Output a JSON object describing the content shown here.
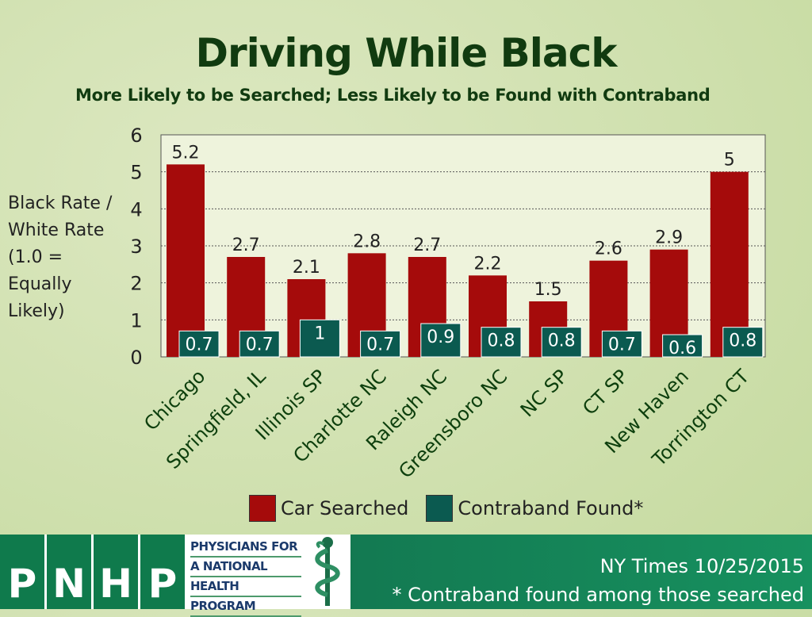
{
  "title": "Driving While Black",
  "subtitle": "More Likely to be Searched; Less Likely to be Found with Contraband",
  "y_axis_label_lines": [
    "Black Rate /",
    "White Rate",
    "(1.0 =",
    "Equally",
    "Likely)"
  ],
  "chart_data": {
    "type": "bar",
    "categories": [
      "Chicago",
      "Springfield, IL",
      "Illinois SP",
      "Charlotte NC",
      "Raleigh NC",
      "Greensboro NC",
      "NC SP",
      "CT SP",
      "New Haven",
      "Torrington CT"
    ],
    "series": [
      {
        "name": "Car Searched",
        "values": [
          5.2,
          2.7,
          2.1,
          2.8,
          2.7,
          2.2,
          1.5,
          2.6,
          2.9,
          5
        ],
        "labels": [
          "5.2",
          "2.7",
          "2.1",
          "2.8",
          "2.7",
          "2.2",
          "1.5",
          "2.6",
          "2.9",
          "5"
        ],
        "color": "#a50b0b"
      },
      {
        "name": "Contraband Found*",
        "values": [
          0.7,
          0.7,
          1,
          0.7,
          0.9,
          0.8,
          0.8,
          0.7,
          0.6,
          0.8
        ],
        "labels": [
          "0.7",
          "0.7",
          "1",
          "0.7",
          "0.9",
          "0.8",
          "0.8",
          "0.7",
          "0.6",
          "0.8"
        ],
        "color": "#0b5a50"
      }
    ],
    "ylim": [
      0,
      6
    ],
    "yticks": [
      0,
      1,
      2,
      3,
      4,
      5,
      6
    ],
    "ylabel": "Black Rate / White Rate (1.0 = Equally Likely)",
    "grid": true,
    "legend_position": "bottom"
  },
  "legend": [
    {
      "label": "Car Searched",
      "color": "#a50b0b"
    },
    {
      "label": "Contraband Found*",
      "color": "#0b5a50"
    }
  ],
  "footer": {
    "logo_letters": [
      "P",
      "N",
      "H",
      "P"
    ],
    "logo_lines": [
      "PHYSICIANS FOR",
      "A NATIONAL",
      "HEALTH",
      "PROGRAM"
    ],
    "source": "NY Times 10/25/2015",
    "note": "* Contraband found among those searched"
  }
}
